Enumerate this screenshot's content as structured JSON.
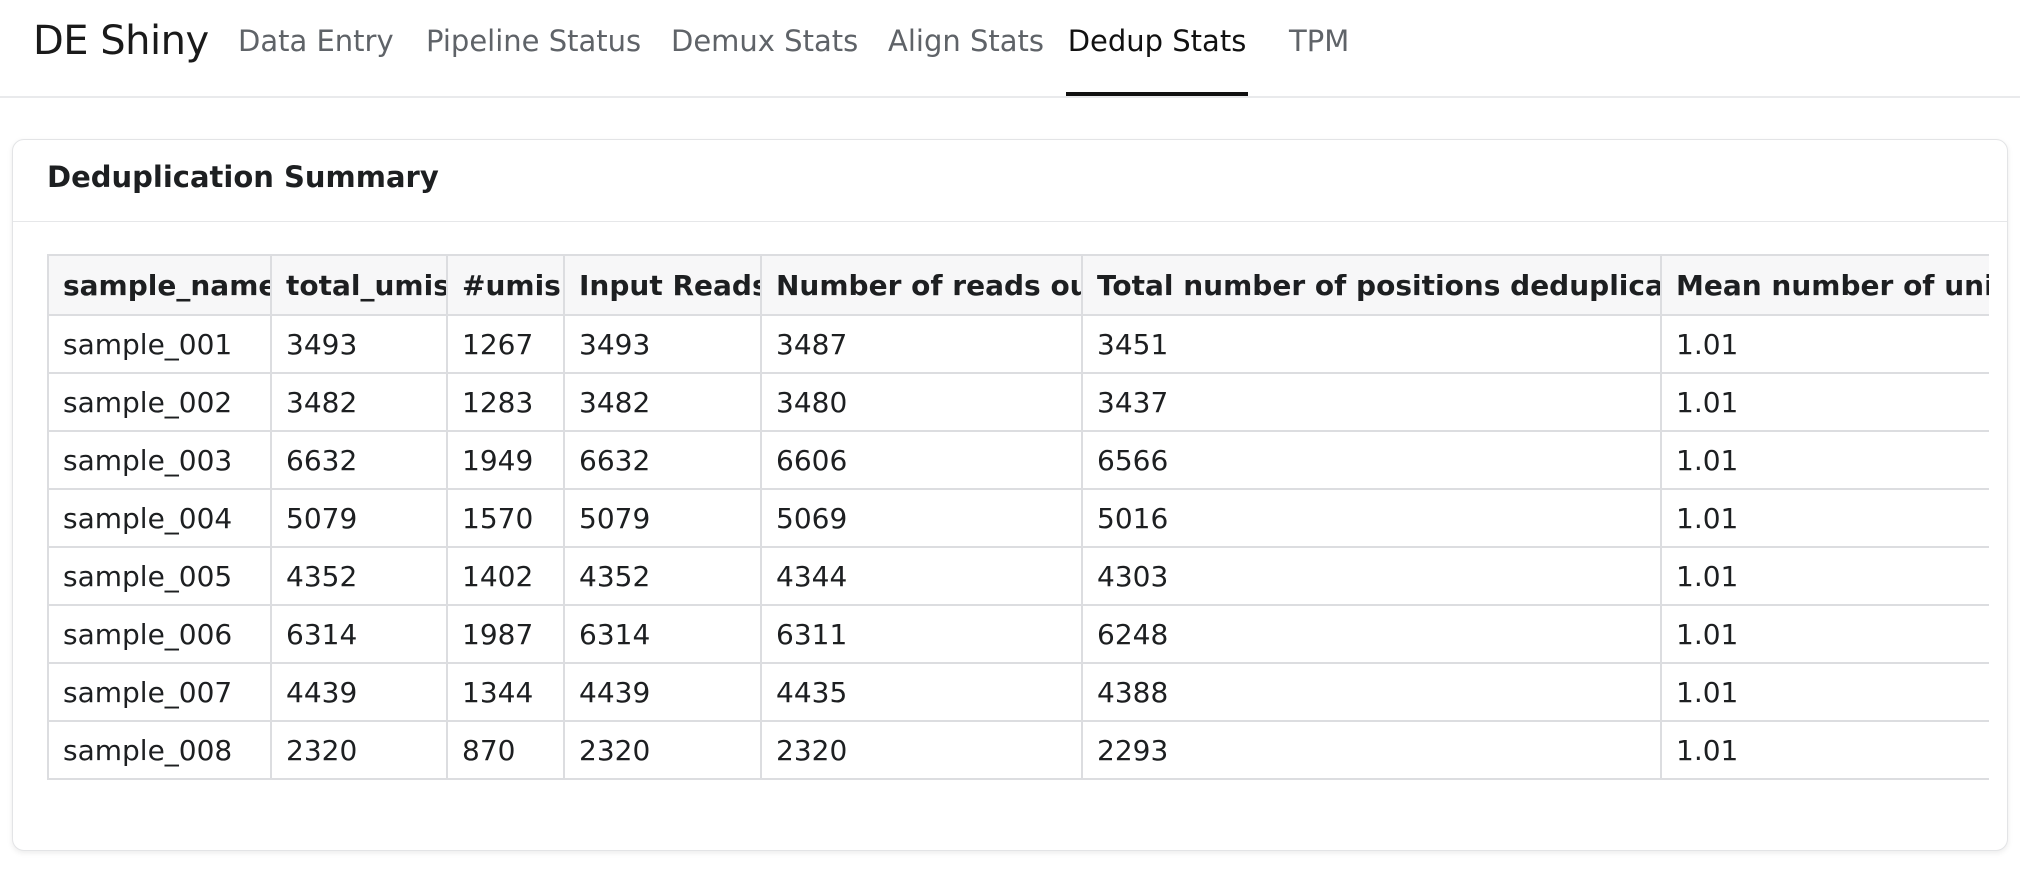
{
  "app": {
    "title": "DE Shiny"
  },
  "nav": {
    "tabs": [
      {
        "label": "Data Entry",
        "active": false
      },
      {
        "label": "Pipeline Status",
        "active": false
      },
      {
        "label": "Demux Stats",
        "active": false
      },
      {
        "label": "Align Stats",
        "active": false
      },
      {
        "label": "Dedup Stats",
        "active": true
      },
      {
        "label": "TPM",
        "active": false
      }
    ]
  },
  "card": {
    "title": "Deduplication Summary"
  },
  "table": {
    "columns": [
      "sample_name",
      "total_umis",
      "#umis",
      "Input Reads",
      "Number of reads out",
      "Total number of positions deduplicated",
      "Mean number of uniq"
    ],
    "rows": [
      [
        "sample_001",
        "3493",
        "1267",
        "3493",
        "3487",
        "3451",
        "1.01"
      ],
      [
        "sample_002",
        "3482",
        "1283",
        "3482",
        "3480",
        "3437",
        "1.01"
      ],
      [
        "sample_003",
        "6632",
        "1949",
        "6632",
        "6606",
        "6566",
        "1.01"
      ],
      [
        "sample_004",
        "5079",
        "1570",
        "5079",
        "5069",
        "5016",
        "1.01"
      ],
      [
        "sample_005",
        "4352",
        "1402",
        "4352",
        "4344",
        "4303",
        "1.01"
      ],
      [
        "sample_006",
        "6314",
        "1987",
        "6314",
        "6311",
        "6248",
        "1.01"
      ],
      [
        "sample_007",
        "4439",
        "1344",
        "4439",
        "4435",
        "4388",
        "1.01"
      ],
      [
        "sample_008",
        "2320",
        "870",
        "2320",
        "2320",
        "2293",
        "1.01"
      ]
    ]
  }
}
